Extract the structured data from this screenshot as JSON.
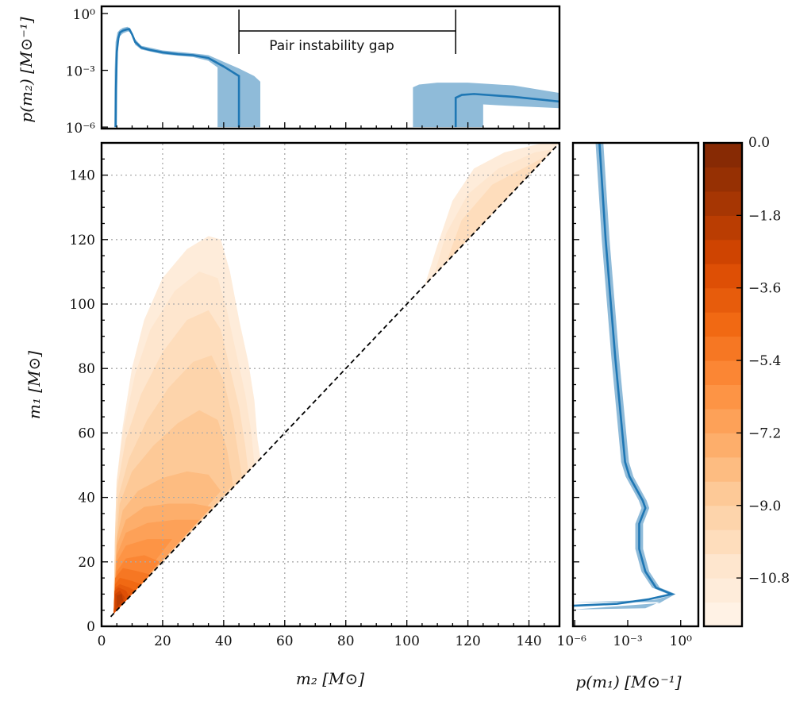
{
  "chart_data": [
    {
      "id": "joint",
      "type": "heatmap",
      "subtype": "filled-contour",
      "xlabel": "m₂ [M⊙]",
      "ylabel": "m₁ [M⊙]",
      "xlim": [
        0,
        150
      ],
      "ylim": [
        0,
        150
      ],
      "xticks": [
        0,
        20,
        40,
        60,
        80,
        100,
        120,
        140
      ],
      "yticks": [
        0,
        20,
        40,
        60,
        80,
        100,
        120,
        140
      ],
      "grid": true,
      "diagonal": "m1 = m2 (dashed)",
      "contours": [
        {
          "level": -11.4,
          "points": [
            [
              4,
              4
            ],
            [
              4.5,
              30
            ],
            [
              5,
              45
            ],
            [
              7,
              62
            ],
            [
              10,
              80
            ],
            [
              14,
              95
            ],
            [
              20,
              108
            ],
            [
              28,
              117
            ],
            [
              35,
              121
            ],
            [
              39,
              120
            ],
            [
              42,
              110
            ],
            [
              45,
              95
            ],
            [
              48,
              82
            ],
            [
              50,
              70
            ],
            [
              51,
              58
            ],
            [
              52,
              52
            ]
          ]
        },
        {
          "level": -11.4,
          "points": [
            [
              106,
              106
            ],
            [
              110,
              118
            ],
            [
              115,
              132
            ],
            [
              122,
              142
            ],
            [
              132,
              147
            ],
            [
              145,
              150
            ],
            [
              150,
              150
            ]
          ]
        },
        {
          "level": -10.8,
          "points": [
            [
              4,
              4
            ],
            [
              4.5,
              30
            ],
            [
              5,
              45
            ],
            [
              7,
              60
            ],
            [
              11,
              78
            ],
            [
              16,
              92
            ],
            [
              24,
              104
            ],
            [
              32,
              110
            ],
            [
              38,
              108
            ],
            [
              41,
              98
            ],
            [
              44,
              85
            ],
            [
              47,
              72
            ],
            [
              49,
              60
            ],
            [
              50,
              50
            ]
          ]
        },
        {
          "level": -10.8,
          "points": [
            [
              109,
              109
            ],
            [
              113,
              122
            ],
            [
              120,
              134
            ],
            [
              130,
              142
            ],
            [
              142,
              147
            ],
            [
              148,
              148
            ]
          ]
        },
        {
          "level": -10.2,
          "points": [
            [
              4,
              4
            ],
            [
              4.5,
              30
            ],
            [
              5,
              42
            ],
            [
              8,
              58
            ],
            [
              13,
              72
            ],
            [
              20,
              85
            ],
            [
              28,
              95
            ],
            [
              35,
              98
            ],
            [
              39,
              92
            ],
            [
              42,
              80
            ],
            [
              45,
              68
            ],
            [
              47,
              56
            ],
            [
              48,
              48
            ]
          ]
        },
        {
          "level": -10.2,
          "points": [
            [
              113,
              113
            ],
            [
              118,
              126
            ],
            [
              128,
              137
            ],
            [
              140,
              143
            ],
            [
              146,
              146
            ]
          ]
        },
        {
          "level": -9.6,
          "points": [
            [
              4,
              4
            ],
            [
              4.5,
              28
            ],
            [
              5.5,
              40
            ],
            [
              9,
              52
            ],
            [
              15,
              64
            ],
            [
              22,
              74
            ],
            [
              30,
              82
            ],
            [
              36,
              84
            ],
            [
              40,
              76
            ],
            [
              43,
              64
            ],
            [
              45,
              52
            ],
            [
              46,
              46
            ]
          ]
        },
        {
          "level": -9.0,
          "points": [
            [
              4,
              4
            ],
            [
              5,
              28
            ],
            [
              6,
              38
            ],
            [
              10,
              48
            ],
            [
              17,
              56
            ],
            [
              25,
              63
            ],
            [
              32,
              67
            ],
            [
              38,
              64
            ],
            [
              41,
              55
            ],
            [
              43,
              44
            ]
          ]
        },
        {
          "level": -8.4,
          "points": [
            [
              4,
              4
            ],
            [
              5,
              27
            ],
            [
              7,
              36
            ],
            [
              12,
              42
            ],
            [
              20,
              46
            ],
            [
              28,
              48
            ],
            [
              35,
              47
            ],
            [
              39,
              42
            ]
          ]
        },
        {
          "level": -7.8,
          "points": [
            [
              4,
              4
            ],
            [
              5,
              25
            ],
            [
              8,
              33
            ],
            [
              14,
              37
            ],
            [
              22,
              38
            ],
            [
              30,
              38
            ],
            [
              36,
              37
            ]
          ]
        },
        {
          "level": -7.2,
          "points": [
            [
              4,
              4
            ],
            [
              5,
              22
            ],
            [
              8,
              29
            ],
            [
              15,
              32
            ],
            [
              24,
              33
            ],
            [
              32,
              33
            ]
          ]
        },
        {
          "level": -6.6,
          "points": [
            [
              4,
              4
            ],
            [
              5,
              20
            ],
            [
              8,
              25
            ],
            [
              15,
              27
            ],
            [
              23,
              27
            ]
          ]
        },
        {
          "level": -6.0,
          "points": [
            [
              4,
              4
            ],
            [
              5,
              17
            ],
            [
              8,
              21
            ],
            [
              14,
              22
            ],
            [
              19,
              20
            ]
          ]
        },
        {
          "level": -5.4,
          "points": [
            [
              4,
              4
            ],
            [
              4.5,
              15
            ],
            [
              7,
              18
            ],
            [
              12,
              17
            ],
            [
              16,
              16
            ]
          ]
        },
        {
          "level": -4.8,
          "points": [
            [
              4,
              4
            ],
            [
              4.5,
              13
            ],
            [
              6,
              15
            ],
            [
              10,
              14
            ],
            [
              13,
              13
            ]
          ]
        },
        {
          "level": -4.2,
          "points": [
            [
              4,
              4
            ],
            [
              4.5,
              12
            ],
            [
              6,
              13
            ],
            [
              9,
              12
            ],
            [
              11,
              11
            ]
          ]
        },
        {
          "level": -3.6,
          "points": [
            [
              4,
              4
            ],
            [
              4.3,
              11
            ],
            [
              5.5,
              12
            ],
            [
              8,
              11
            ],
            [
              9,
              9
            ]
          ]
        },
        {
          "level": -3.0,
          "points": [
            [
              4.5,
              5
            ],
            [
              4.5,
              10
            ],
            [
              6,
              11
            ],
            [
              7.5,
              9
            ],
            [
              7,
              7
            ]
          ]
        },
        {
          "level": -2.4,
          "points": [
            [
              5,
              6
            ],
            [
              5,
              9.5
            ],
            [
              6.5,
              10
            ],
            [
              7,
              8
            ]
          ]
        }
      ]
    },
    {
      "id": "marginal-m2",
      "type": "line",
      "ylabel": "p(m₂) [M⊙⁻¹]",
      "yscale": "log",
      "xlim": [
        0,
        150
      ],
      "ylim_log10": [
        -6,
        0
      ],
      "yticks": [
        "10⁰",
        "10⁻³",
        "10⁻⁶"
      ],
      "yticks_log10": [
        0,
        -3,
        -6
      ],
      "series_color": "#1f77b4",
      "band_color": "#8fbbd9",
      "lines": [
        [
          [
            4.6,
            -6
          ],
          [
            4.7,
            -4
          ],
          [
            5,
            -2
          ],
          [
            5.5,
            -1.3
          ],
          [
            6,
            -1.0
          ],
          [
            7,
            -0.9
          ],
          [
            8,
            -0.85
          ],
          [
            9,
            -0.82
          ],
          [
            10,
            -1.1
          ],
          [
            11,
            -1.5
          ],
          [
            13,
            -1.8
          ],
          [
            16,
            -1.93
          ],
          [
            20,
            -2.05
          ],
          [
            25,
            -2.15
          ],
          [
            30,
            -2.2
          ],
          [
            35,
            -2.35
          ],
          [
            40,
            -2.8
          ],
          [
            42,
            -3.0
          ],
          [
            44,
            -3.2
          ],
          [
            45,
            -3.3
          ],
          [
            45,
            -6
          ]
        ],
        [
          [
            116,
            -6
          ],
          [
            116,
            -4.45
          ],
          [
            118,
            -4.3
          ],
          [
            122,
            -4.25
          ],
          [
            135,
            -4.4
          ],
          [
            150,
            -4.65
          ]
        ]
      ],
      "bands": [
        [
          [
            4.2,
            -6
          ],
          [
            4.3,
            -3
          ],
          [
            4.6,
            -1.5
          ],
          [
            5.2,
            -1.0
          ],
          [
            6,
            -0.85
          ],
          [
            7,
            -0.75
          ],
          [
            8.5,
            -0.7
          ],
          [
            9.5,
            -0.8
          ],
          [
            11,
            -1.35
          ],
          [
            13,
            -1.7
          ],
          [
            20,
            -1.95
          ],
          [
            30,
            -2.1
          ],
          [
            35,
            -2.2
          ],
          [
            40,
            -2.55
          ],
          [
            45,
            -2.9
          ],
          [
            50,
            -3.3
          ],
          [
            52,
            -3.6
          ],
          [
            52,
            -6
          ],
          [
            38,
            -6
          ],
          [
            38,
            -2.85
          ],
          [
            35,
            -2.5
          ],
          [
            30,
            -2.3
          ],
          [
            20,
            -2.15
          ],
          [
            13,
            -1.9
          ],
          [
            11,
            -1.65
          ],
          [
            9.5,
            -0.95
          ],
          [
            8.5,
            -0.95
          ],
          [
            7,
            -1.05
          ],
          [
            6,
            -1.2
          ],
          [
            5.5,
            -1.6
          ],
          [
            5.2,
            -2.5
          ],
          [
            5,
            -6
          ]
        ],
        [
          [
            102,
            -6
          ],
          [
            102,
            -3.9
          ],
          [
            104,
            -3.75
          ],
          [
            110,
            -3.65
          ],
          [
            120,
            -3.65
          ],
          [
            135,
            -3.8
          ],
          [
            150,
            -4.2
          ],
          [
            150,
            -5.0
          ],
          [
            130,
            -4.85
          ],
          [
            125,
            -4.8
          ],
          [
            125,
            -6
          ]
        ]
      ],
      "annotation": {
        "text": "Pair instability gap",
        "from": 45,
        "to": 116
      }
    },
    {
      "id": "marginal-m1",
      "type": "line",
      "xlabel": "p(m₁) [M⊙⁻¹]",
      "xscale": "log",
      "xlim_log10": [
        -6,
        0
      ],
      "xticks": [
        "10⁻⁶",
        "10⁻³",
        "10⁰"
      ],
      "xticks_log10": [
        -6,
        -3,
        0
      ],
      "ylim": [
        0,
        150
      ],
      "line": [
        [
          -4.6,
          150
        ],
        [
          -4.25,
          120
        ],
        [
          -3.7,
          83
        ],
        [
          -3.15,
          51
        ],
        [
          -2.9,
          46.5
        ],
        [
          -2.15,
          39
        ],
        [
          -2.0,
          36.7
        ],
        [
          -2.35,
          31.8
        ],
        [
          -2.35,
          24
        ],
        [
          -2.0,
          17
        ],
        [
          -1.4,
          12
        ],
        [
          -0.5,
          10
        ],
        [
          -1.8,
          8.4
        ],
        [
          -3.6,
          7
        ],
        [
          -6.1,
          6.4
        ]
      ],
      "band_halfwidth_log10": 0.22
    },
    {
      "id": "colorbar",
      "type": "colorbar",
      "colormap": "Oranges",
      "range": [
        -12,
        0
      ],
      "band_step": 0.6,
      "tick_values": [
        0.0,
        -1.8,
        -3.6,
        -5.4,
        -7.2,
        -9.0,
        -10.8
      ],
      "tick_labels": [
        "0.0",
        "−1.8",
        "−3.6",
        "−5.4",
        "−7.2",
        "−9.0",
        "−10.8"
      ]
    }
  ]
}
